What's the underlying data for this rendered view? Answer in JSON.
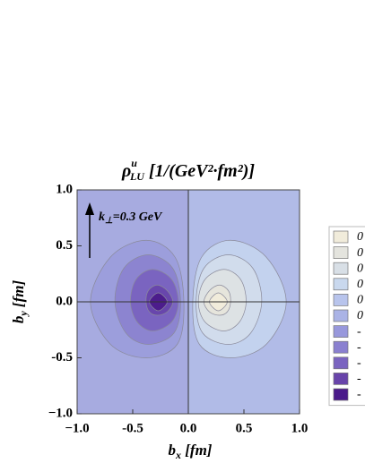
{
  "chart_data": {
    "type": "contour",
    "title": {
      "symbol": "ρ",
      "superscript": "u",
      "subscript": "LU",
      "unit": " [1/(GeV²·fm²)]"
    },
    "x_label": {
      "symbol": "b",
      "subscript": "x",
      "unit": " [fm]"
    },
    "y_label": {
      "symbol": "b",
      "subscript": "y",
      "unit": " [fm]"
    },
    "annotation": {
      "symbol": "k",
      "subscript": "⊥",
      "text": "=0.3 GeV"
    },
    "xlim": [
      -1,
      1
    ],
    "ylim": [
      -1,
      1
    ],
    "xticks": [
      {
        "value": -1,
        "label": "−1.0"
      },
      -0.5,
      {
        "value": 0,
        "label": "0.0"
      },
      0.5,
      {
        "value": 1,
        "label": "1.0"
      }
    ],
    "yticks": [
      {
        "value": -1,
        "label": "−1.0"
      },
      -0.5,
      {
        "value": 0,
        "label": "0.0"
      },
      0.5,
      {
        "value": 1,
        "label": "1.0"
      }
    ],
    "background": {
      "left": "#a7abe0",
      "right": "#b1bbe7"
    },
    "contours": [
      {
        "color": "#9c9edc",
        "x": [
          -0.04,
          -0.12,
          -0.38,
          -0.7,
          -0.88,
          -0.7,
          -0.38,
          -0.1
        ],
        "y": [
          0.0,
          0.4,
          0.55,
          0.4,
          0.0,
          -0.38,
          -0.5,
          -0.38
        ]
      },
      {
        "color": "#8c84d0",
        "x": [
          -0.07,
          -0.14,
          -0.36,
          -0.58,
          -0.66,
          -0.56,
          -0.36,
          -0.13
        ],
        "y": [
          0.0,
          0.3,
          0.42,
          0.3,
          0.0,
          -0.28,
          -0.38,
          -0.28
        ]
      },
      {
        "color": "#7a64c0",
        "x": [
          -0.09,
          -0.15,
          -0.32,
          -0.47,
          -0.52,
          -0.46,
          -0.32,
          -0.15
        ],
        "y": [
          0.0,
          0.2,
          0.29,
          0.2,
          0.0,
          -0.18,
          -0.26,
          -0.18
        ]
      },
      {
        "color": "#6846ac",
        "x": [
          -0.14,
          -0.19,
          -0.28,
          -0.36,
          -0.38,
          -0.35,
          -0.28,
          -0.19
        ],
        "y": [
          0.0,
          0.1,
          0.15,
          0.1,
          0.0,
          -0.09,
          -0.12,
          -0.09
        ]
      },
      {
        "color": "#4c1c8c",
        "x": [
          -0.19,
          -0.27,
          -0.35,
          -0.27
        ],
        "y": [
          0.0,
          0.08,
          0.0,
          -0.08
        ]
      },
      {
        "color": "#c3d2ee",
        "x": [
          0.04,
          0.12,
          0.38,
          0.7,
          0.88,
          0.7,
          0.38,
          0.1
        ],
        "y": [
          0.0,
          0.4,
          0.55,
          0.4,
          0.0,
          -0.38,
          -0.5,
          -0.38
        ]
      },
      {
        "color": "#d1dcec",
        "x": [
          0.07,
          0.14,
          0.36,
          0.58,
          0.66,
          0.56,
          0.36,
          0.13
        ],
        "y": [
          0.0,
          0.3,
          0.42,
          0.3,
          0.0,
          -0.28,
          -0.38,
          -0.28
        ]
      },
      {
        "color": "#dde2e4",
        "x": [
          0.09,
          0.15,
          0.32,
          0.47,
          0.52,
          0.46,
          0.32,
          0.15
        ],
        "y": [
          0.0,
          0.2,
          0.29,
          0.2,
          0.0,
          -0.18,
          -0.26,
          -0.18
        ]
      },
      {
        "color": "#e6e5dc",
        "x": [
          0.14,
          0.19,
          0.28,
          0.36,
          0.38,
          0.35,
          0.28,
          0.19
        ],
        "y": [
          0.0,
          0.1,
          0.15,
          0.1,
          0.0,
          -0.09,
          -0.12,
          -0.09
        ]
      },
      {
        "color": "#f1ecdb",
        "x": [
          0.19,
          0.27,
          0.35,
          0.27
        ],
        "y": [
          0.0,
          0.08,
          0.0,
          -0.08
        ]
      }
    ],
    "legend": {
      "labels": [
        "0",
        "0",
        "0",
        "0",
        "0",
        "0",
        "-",
        "-",
        "-",
        "-",
        "-"
      ],
      "colors": [
        "#f1ecdb",
        "#e4e4de",
        "#d8dfe6",
        "#c9d8ee",
        "#b8c4ec",
        "#aab3e6",
        "#9898dc",
        "#8a80d0",
        "#7a64c0",
        "#6844aa",
        "#4a1a8a"
      ]
    }
  }
}
